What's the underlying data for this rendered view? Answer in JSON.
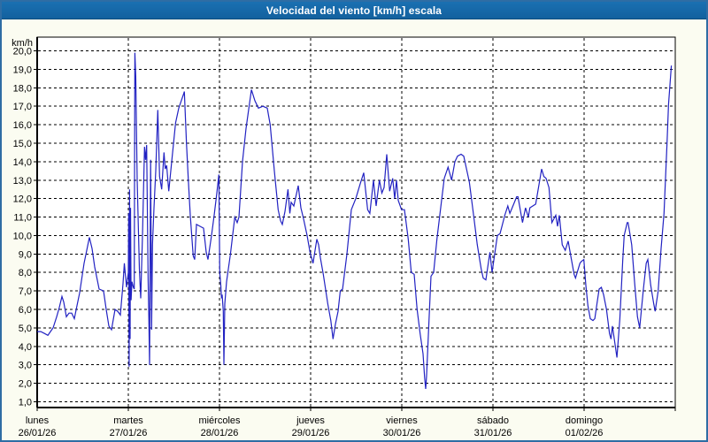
{
  "window": {
    "title": "Velocidad del viento [km/h] escala"
  },
  "colors": {
    "titlebar_bg": "#1A70B2",
    "titlebar_bg2": "#13619E",
    "titlebar_edge": "#0C4D7F",
    "title_text": "#FFFFFF",
    "window_border": "#2E6DA4",
    "window_bg": "#FBFCF1",
    "plot_bg": "#FFFFFF",
    "grid": "#000000",
    "text": "#000000",
    "line": "#2222C2"
  },
  "chart_data": {
    "type": "line",
    "title": "Velocidad del viento [km/h] escala",
    "y_unit": "km/h",
    "ylabel": "km/h",
    "xlabel": "",
    "ylim": [
      1.0,
      20.0
    ],
    "y_step": 1.0,
    "grid": "dashed",
    "legend": "none",
    "y_tick_labels": [
      "20,0",
      "19,0",
      "18,0",
      "17,0",
      "16,0",
      "15,0",
      "14,0",
      "13,0",
      "12,0",
      "11,0",
      "10,0",
      "9,0",
      "8,0",
      "7,0",
      "6,0",
      "5,0",
      "4,0",
      "3,0",
      "2,0",
      "1,0"
    ],
    "x_axis": {
      "days": [
        {
          "name": "lunes",
          "date": "26/01/26"
        },
        {
          "name": "martes",
          "date": "27/01/26"
        },
        {
          "name": "miércoles",
          "date": "28/01/26"
        },
        {
          "name": "jueves",
          "date": "29/01/26"
        },
        {
          "name": "viernes",
          "date": "30/01/26"
        },
        {
          "name": "sábado",
          "date": "31/01/26"
        },
        {
          "name": "domingo",
          "date": "01/02/26"
        }
      ]
    },
    "series": [
      {
        "name": "Velocidad del viento",
        "units": "km/h",
        "x_units": "days from 26/01/26 00:00",
        "points": [
          [
            0,
            4.8
          ],
          [
            0.04,
            4.8
          ],
          [
            0.08,
            4.7
          ],
          [
            0.117,
            4.6
          ],
          [
            0.146,
            4.8
          ],
          [
            0.175,
            5.0
          ],
          [
            0.214,
            5.6
          ],
          [
            0.243,
            6.1
          ],
          [
            0.272,
            6.7
          ],
          [
            0.291,
            6.4
          ],
          [
            0.32,
            5.6
          ],
          [
            0.35,
            5.8
          ],
          [
            0.379,
            5.8
          ],
          [
            0.408,
            5.5
          ],
          [
            0.437,
            6.2
          ],
          [
            0.466,
            6.9
          ],
          [
            0.515,
            8.5
          ],
          [
            0.544,
            9.2
          ],
          [
            0.573,
            9.9
          ],
          [
            0.602,
            9.3
          ],
          [
            0.631,
            8.3
          ],
          [
            0.68,
            7.1
          ],
          [
            0.728,
            7.0
          ],
          [
            0.757,
            6.0
          ],
          [
            0.786,
            5.1
          ],
          [
            0.816,
            4.9
          ],
          [
            0.854,
            6.0
          ],
          [
            0.883,
            5.9
          ],
          [
            0.913,
            5.7
          ],
          [
            0.942,
            7.4
          ],
          [
            0.956,
            8.5
          ],
          [
            0.981,
            7.2
          ],
          [
            1.0,
            8.0
          ],
          [
            1.004,
            11.2
          ],
          [
            1.009,
            2.9
          ],
          [
            1.014,
            12.5
          ],
          [
            1.019,
            4.4
          ],
          [
            1.024,
            11.5
          ],
          [
            1.03,
            6.5
          ],
          [
            1.04,
            7.5
          ],
          [
            1.055,
            7.2
          ],
          [
            1.065,
            7.1
          ],
          [
            1.072,
            19.9
          ],
          [
            1.082,
            18.6
          ],
          [
            1.097,
            13.0
          ],
          [
            1.121,
            8.2
          ],
          [
            1.136,
            6.6
          ],
          [
            1.155,
            10.0
          ],
          [
            1.178,
            14.8
          ],
          [
            1.189,
            14.1
          ],
          [
            1.201,
            14.9
          ],
          [
            1.217,
            7.6
          ],
          [
            1.225,
            5.5
          ],
          [
            1.233,
            3.0
          ],
          [
            1.245,
            14.1
          ],
          [
            1.255,
            4.9
          ],
          [
            1.265,
            9.5
          ],
          [
            1.282,
            11.5
          ],
          [
            1.301,
            13.5
          ],
          [
            1.323,
            16.8
          ],
          [
            1.343,
            13.2
          ],
          [
            1.366,
            12.5
          ],
          [
            1.391,
            14.5
          ],
          [
            1.405,
            13.6
          ],
          [
            1.42,
            13.8
          ],
          [
            1.444,
            12.4
          ],
          [
            1.476,
            14.0
          ],
          [
            1.518,
            16.1
          ],
          [
            1.553,
            16.9
          ],
          [
            1.609,
            17.7
          ],
          [
            1.615,
            17.8
          ],
          [
            1.638,
            15.0
          ],
          [
            1.657,
            13.1
          ],
          [
            1.68,
            11.1
          ],
          [
            1.712,
            8.9
          ],
          [
            1.728,
            8.7
          ],
          [
            1.748,
            10.6
          ],
          [
            1.786,
            10.5
          ],
          [
            1.825,
            10.4
          ],
          [
            1.854,
            9.1
          ],
          [
            1.874,
            8.7
          ],
          [
            1.913,
            10.0
          ],
          [
            1.942,
            11.1
          ],
          [
            1.971,
            12.3
          ],
          [
            1.993,
            13.3
          ],
          [
            2.003,
            8.0
          ],
          [
            2.015,
            7.3
          ],
          [
            2.022,
            6.6
          ],
          [
            2.029,
            6.8
          ],
          [
            2.042,
            5.9
          ],
          [
            2.049,
            3.0
          ],
          [
            2.058,
            6.3
          ],
          [
            2.078,
            7.5
          ],
          [
            2.12,
            9.0
          ],
          [
            2.168,
            11.0
          ],
          [
            2.194,
            10.7
          ],
          [
            2.214,
            11.0
          ],
          [
            2.252,
            14.0
          ],
          [
            2.291,
            15.8
          ],
          [
            2.35,
            17.9
          ],
          [
            2.388,
            17.3
          ],
          [
            2.427,
            16.9
          ],
          [
            2.476,
            17.0
          ],
          [
            2.524,
            16.9
          ],
          [
            2.556,
            16.0
          ],
          [
            2.602,
            13.5
          ],
          [
            2.644,
            11.4
          ],
          [
            2.67,
            10.8
          ],
          [
            2.689,
            10.6
          ],
          [
            2.718,
            11.3
          ],
          [
            2.751,
            12.5
          ],
          [
            2.772,
            11.2
          ],
          [
            2.786,
            11.8
          ],
          [
            2.816,
            11.6
          ],
          [
            2.864,
            12.7
          ],
          [
            2.893,
            11.5
          ],
          [
            2.922,
            10.9
          ],
          [
            2.961,
            10.0
          ],
          [
            2.993,
            9.1
          ],
          [
            3.026,
            8.5
          ],
          [
            3.068,
            9.8
          ],
          [
            3.087,
            9.5
          ],
          [
            3.107,
            8.8
          ],
          [
            3.139,
            7.9
          ],
          [
            3.188,
            6.3
          ],
          [
            3.221,
            5.4
          ],
          [
            3.246,
            4.4
          ],
          [
            3.272,
            5.2
          ],
          [
            3.301,
            5.9
          ],
          [
            3.325,
            7.0
          ],
          [
            3.35,
            7.1
          ],
          [
            3.398,
            9.0
          ],
          [
            3.447,
            11.4
          ],
          [
            3.495,
            12.0
          ],
          [
            3.544,
            12.8
          ],
          [
            3.583,
            13.4
          ],
          [
            3.625,
            11.4
          ],
          [
            3.65,
            11.2
          ],
          [
            3.689,
            13.0
          ],
          [
            3.718,
            11.6
          ],
          [
            3.754,
            13.0
          ],
          [
            3.782,
            12.3
          ],
          [
            3.806,
            12.6
          ],
          [
            3.835,
            14.4
          ],
          [
            3.867,
            12.4
          ],
          [
            3.9,
            13.1
          ],
          [
            3.922,
            12.0
          ],
          [
            3.942,
            13.0
          ],
          [
            3.961,
            11.9
          ],
          [
            3.997,
            11.4
          ],
          [
            4.029,
            11.4
          ],
          [
            4.071,
            9.8
          ],
          [
            4.104,
            8.0
          ],
          [
            4.136,
            7.9
          ],
          [
            4.168,
            6.0
          ],
          [
            4.201,
            4.7
          ],
          [
            4.233,
            3.6
          ],
          [
            4.25,
            2.3
          ],
          [
            4.262,
            1.7
          ],
          [
            4.272,
            2.4
          ],
          [
            4.304,
            6.0
          ],
          [
            4.32,
            7.8
          ],
          [
            4.35,
            8.0
          ],
          [
            4.385,
            9.8
          ],
          [
            4.434,
            11.8
          ],
          [
            4.466,
            13.1
          ],
          [
            4.508,
            13.7
          ],
          [
            4.547,
            13.0
          ],
          [
            4.583,
            14.0
          ],
          [
            4.612,
            14.3
          ],
          [
            4.65,
            14.4
          ],
          [
            4.68,
            14.3
          ],
          [
            4.741,
            12.9
          ],
          [
            4.79,
            11.0
          ],
          [
            4.828,
            9.5
          ],
          [
            4.871,
            8.2
          ],
          [
            4.893,
            7.7
          ],
          [
            4.922,
            7.6
          ],
          [
            4.967,
            9.1
          ],
          [
            4.99,
            8.0
          ],
          [
            5.049,
            10.0
          ],
          [
            5.078,
            10.1
          ],
          [
            5.13,
            11.1
          ],
          [
            5.163,
            11.6
          ],
          [
            5.185,
            11.2
          ],
          [
            5.211,
            11.5
          ],
          [
            5.26,
            12.1
          ],
          [
            5.275,
            12.1
          ],
          [
            5.324,
            10.7
          ],
          [
            5.357,
            11.5
          ],
          [
            5.388,
            11.0
          ],
          [
            5.405,
            11.5
          ],
          [
            5.469,
            11.7
          ],
          [
            5.534,
            13.6
          ],
          [
            5.558,
            13.2
          ],
          [
            5.583,
            13.1
          ],
          [
            5.615,
            12.6
          ],
          [
            5.647,
            10.7
          ],
          [
            5.689,
            11.1
          ],
          [
            5.709,
            10.5
          ],
          [
            5.728,
            11.1
          ],
          [
            5.76,
            9.5
          ],
          [
            5.793,
            9.2
          ],
          [
            5.825,
            9.7
          ],
          [
            5.857,
            8.8
          ],
          [
            5.89,
            7.9
          ],
          [
            5.906,
            7.7
          ],
          [
            5.954,
            8.5
          ],
          [
            5.971,
            8.6
          ],
          [
            5.997,
            8.7
          ],
          [
            6.019,
            7.3
          ],
          [
            6.042,
            6.2
          ],
          [
            6.068,
            5.5
          ],
          [
            6.097,
            5.4
          ],
          [
            6.117,
            5.5
          ],
          [
            6.141,
            6.3
          ],
          [
            6.165,
            7.1
          ],
          [
            6.189,
            7.2
          ],
          [
            6.214,
            6.8
          ],
          [
            6.246,
            6.0
          ],
          [
            6.279,
            4.7
          ],
          [
            6.295,
            4.4
          ],
          [
            6.311,
            5.1
          ],
          [
            6.343,
            4.0
          ],
          [
            6.36,
            3.4
          ],
          [
            6.392,
            5.5
          ],
          [
            6.424,
            8.7
          ],
          [
            6.44,
            10.0
          ],
          [
            6.473,
            10.7
          ],
          [
            6.483,
            10.7
          ],
          [
            6.522,
            9.5
          ],
          [
            6.553,
            7.5
          ],
          [
            6.585,
            5.6
          ],
          [
            6.61,
            5.0
          ],
          [
            6.65,
            7.1
          ],
          [
            6.682,
            8.5
          ],
          [
            6.699,
            8.7
          ],
          [
            6.731,
            7.3
          ],
          [
            6.764,
            6.3
          ],
          [
            6.78,
            5.9
          ],
          [
            6.813,
            7.0
          ],
          [
            6.845,
            9.3
          ],
          [
            6.877,
            11.2
          ],
          [
            6.91,
            15.0
          ],
          [
            6.926,
            17.1
          ],
          [
            6.957,
            19.2
          ]
        ]
      }
    ]
  }
}
